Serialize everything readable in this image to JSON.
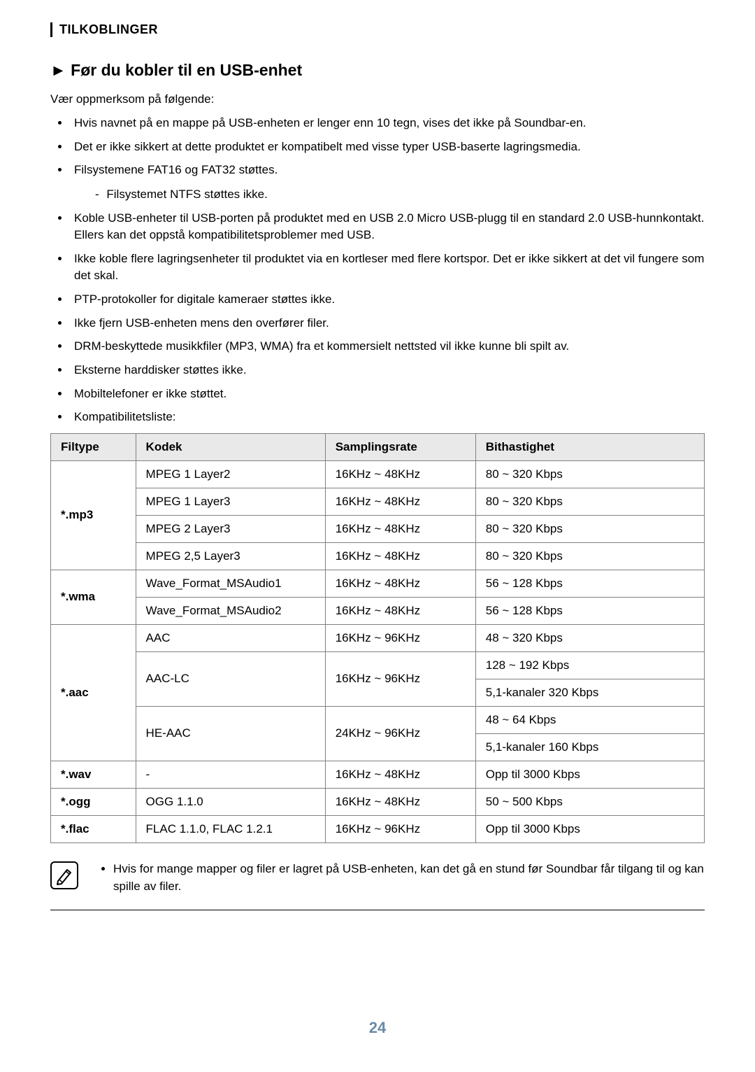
{
  "header": {
    "section_label": "TILKOBLINGER"
  },
  "title": {
    "arrow": "►",
    "text": "Før du kobler til en USB-enhet"
  },
  "intro": "Vær oppmerksom på følgende:",
  "bullets": [
    {
      "text": "Hvis navnet på en mappe på USB-enheten er lenger enn 10 tegn, vises det ikke på Soundbar-en."
    },
    {
      "text": "Det er ikke sikkert at dette produktet er kompatibelt med visse typer USB-baserte lagringsmedia."
    },
    {
      "text": "Filsystemene FAT16 og FAT32 støttes.",
      "sub": [
        "Filsystemet NTFS støttes ikke."
      ]
    },
    {
      "text": "Koble USB-enheter til USB-porten på produktet med en USB 2.0 Micro USB-plugg til en standard 2.0 USB-hunnkontakt. Ellers kan det oppstå kompatibilitetsproblemer med USB."
    },
    {
      "text": "Ikke koble flere lagringsenheter til produktet via en kortleser med flere kortspor. Det er ikke sikkert at det vil fungere som det skal."
    },
    {
      "text": "PTP-protokoller for digitale kameraer støttes ikke."
    },
    {
      "text": "Ikke fjern USB-enheten mens den overfører filer."
    },
    {
      "text": "DRM-beskyttede musikkfiler (MP3, WMA) fra et kommersielt nettsted vil ikke kunne bli spilt av."
    },
    {
      "text": "Eksterne harddisker støttes ikke."
    },
    {
      "text": "Mobiltelefoner er ikke støttet."
    },
    {
      "text": "Kompatibilitetsliste:"
    }
  ],
  "table": {
    "headers": [
      "Filtype",
      "Kodek",
      "Samplingsrate",
      "Bithastighet"
    ],
    "rows": [
      {
        "filetype": "*.mp3",
        "rowspan": 4,
        "codec": "MPEG 1 Layer2",
        "rate": "16KHz ~ 48KHz",
        "bitrate": "80 ~ 320 Kbps"
      },
      {
        "codec": "MPEG 1 Layer3",
        "rate": "16KHz ~ 48KHz",
        "bitrate": "80 ~ 320 Kbps"
      },
      {
        "codec": "MPEG 2 Layer3",
        "rate": "16KHz ~ 48KHz",
        "bitrate": "80 ~ 320 Kbps"
      },
      {
        "codec": "MPEG 2,5 Layer3",
        "rate": "16KHz ~ 48KHz",
        "bitrate": "80 ~ 320 Kbps"
      },
      {
        "filetype": "*.wma",
        "rowspan": 2,
        "codec": "Wave_Format_MSAudio1",
        "rate": "16KHz ~ 48KHz",
        "bitrate": "56 ~ 128 Kbps"
      },
      {
        "codec": "Wave_Format_MSAudio2",
        "rate": "16KHz ~ 48KHz",
        "bitrate": "56 ~ 128 Kbps"
      },
      {
        "filetype": "*.aac",
        "rowspan": 5,
        "codec": "AAC",
        "rate": "16KHz ~ 96KHz",
        "bitrate": "48 ~ 320 Kbps"
      },
      {
        "codec": "AAC-LC",
        "codec_rowspan": 2,
        "rate": "16KHz ~ 96KHz",
        "rate_rowspan": 2,
        "bitrate": "128 ~ 192 Kbps"
      },
      {
        "bitrate": "5,1-kanaler 320 Kbps"
      },
      {
        "codec": "HE-AAC",
        "codec_rowspan": 2,
        "rate": "24KHz ~ 96KHz",
        "rate_rowspan": 2,
        "bitrate": "48 ~ 64 Kbps"
      },
      {
        "bitrate": "5,1-kanaler 160 Kbps"
      },
      {
        "filetype": "*.wav",
        "rowspan": 1,
        "codec": "-",
        "rate": "16KHz ~ 48KHz",
        "bitrate": "Opp til 3000 Kbps"
      },
      {
        "filetype": "*.ogg",
        "rowspan": 1,
        "codec": "OGG 1.1.0",
        "rate": "16KHz ~ 48KHz",
        "bitrate": "50 ~ 500 Kbps"
      },
      {
        "filetype": "*.flac",
        "rowspan": 1,
        "codec": "FLAC 1.1.0, FLAC 1.2.1",
        "rate": "16KHz ~ 96KHz",
        "bitrate": "Opp til 3000 Kbps"
      }
    ]
  },
  "note": {
    "items": [
      "Hvis for mange mapper og filer er lagret på USB-enheten, kan det gå en stund før Soundbar får tilgang til og kan spille av filer."
    ]
  },
  "page_number": "24",
  "styling": {
    "page_bg": "#ffffff",
    "text_color": "#000000",
    "header_th_bg": "#e9e9e9",
    "border_color": "#808080",
    "page_number_color": "#6a8aa8"
  }
}
